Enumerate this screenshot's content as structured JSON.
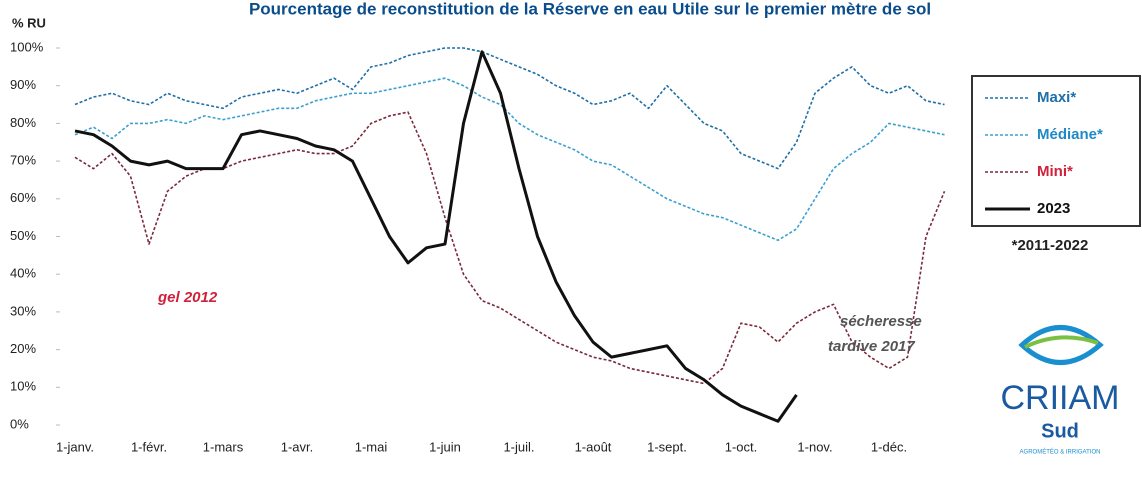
{
  "chart_data": {
    "type": "line",
    "title": "Pourcentage de reconstitution de la Réserve en eau Utile sur le premier mètre de sol",
    "y_label": "% RU",
    "categories": [
      "1-janv.",
      null,
      null,
      null,
      "1-févr.",
      null,
      null,
      null,
      "1-mars",
      null,
      null,
      null,
      "1-avr.",
      null,
      null,
      null,
      "1-mai",
      null,
      null,
      null,
      "1-juin",
      null,
      null,
      null,
      "1-juil.",
      null,
      null,
      null,
      "1-août",
      null,
      null,
      null,
      "1-sept.",
      null,
      null,
      null,
      "1-oct.",
      null,
      null,
      null,
      "1-nov.",
      null,
      null,
      null,
      "1-déc.",
      null,
      null,
      null
    ],
    "series": [
      {
        "name": "Maxi*",
        "color": "#1f6fa8",
        "dash": true,
        "values": [
          85,
          87,
          88,
          86,
          85,
          88,
          86,
          85,
          84,
          87,
          88,
          89,
          88,
          90,
          92,
          89,
          95,
          96,
          98,
          99,
          100,
          100,
          99,
          97,
          95,
          93,
          90,
          88,
          85,
          86,
          88,
          84,
          90,
          85,
          80,
          78,
          72,
          70,
          68,
          75,
          88,
          92,
          95,
          90,
          88,
          90,
          86,
          85
        ]
      },
      {
        "name": "Médiane*",
        "color": "#3aa0d0",
        "dash": true,
        "values": [
          77,
          79,
          76,
          80,
          80,
          81,
          80,
          82,
          81,
          82,
          83,
          84,
          84,
          86,
          87,
          88,
          88,
          89,
          90,
          91,
          92,
          90,
          87,
          85,
          80,
          77,
          75,
          73,
          70,
          69,
          66,
          63,
          60,
          58,
          56,
          55,
          53,
          51,
          49,
          52,
          60,
          68,
          72,
          75,
          80,
          79,
          78,
          77
        ]
      },
      {
        "name": "Mini*",
        "color": "#7a2a3a",
        "dash": true,
        "values": [
          71,
          68,
          72,
          66,
          48,
          62,
          66,
          68,
          68,
          70,
          71,
          72,
          73,
          72,
          72,
          74,
          80,
          82,
          83,
          72,
          55,
          40,
          33,
          31,
          28,
          25,
          22,
          20,
          18,
          17,
          15,
          14,
          13,
          12,
          11,
          15,
          27,
          26,
          22,
          27,
          30,
          32,
          22,
          18,
          15,
          18,
          50,
          62
        ]
      },
      {
        "name": "2023",
        "color": "#111111",
        "dash": false,
        "values": [
          78,
          77,
          74,
          70,
          69,
          70,
          68,
          68,
          68,
          77,
          78,
          77,
          76,
          74,
          73,
          70,
          60,
          50,
          43,
          47,
          48,
          80,
          99,
          88,
          68,
          50,
          38,
          29,
          22,
          18,
          19,
          20,
          21,
          15,
          12,
          8,
          5,
          3,
          1,
          8,
          null,
          null,
          null,
          null,
          null,
          null,
          null,
          null
        ]
      }
    ],
    "legend_colors": [
      "#1f6fa8",
      "#1f8ac6",
      "#d0203a",
      "#111111"
    ],
    "legend_note": "*2011-2022",
    "ylim": [
      0,
      100
    ],
    "yticks": [
      {
        "value": 0,
        "label": "0%"
      },
      {
        "value": 10,
        "label": "10%"
      },
      {
        "value": 20,
        "label": "20%"
      },
      {
        "value": 30,
        "label": "30%"
      },
      {
        "value": 40,
        "label": "40%"
      },
      {
        "value": 50,
        "label": "50%"
      },
      {
        "value": 60,
        "label": "60%"
      },
      {
        "value": 70,
        "label": "70%"
      },
      {
        "value": 80,
        "label": "80%"
      },
      {
        "value": 90,
        "label": "90%"
      },
      {
        "value": 100,
        "label": "100%"
      }
    ],
    "grid": false,
    "legend": "right",
    "annotations": [
      {
        "text": "gel 2012",
        "color": "#d0203a"
      },
      {
        "text": "sécheresse",
        "color": "#555555"
      },
      {
        "text": "tardive 2017",
        "color": "#555555"
      }
    ],
    "logo": {
      "name": "CRIIAM",
      "sub": "Sud",
      "tagline": "AGROMÉTÉO & IRRIGATION"
    }
  }
}
